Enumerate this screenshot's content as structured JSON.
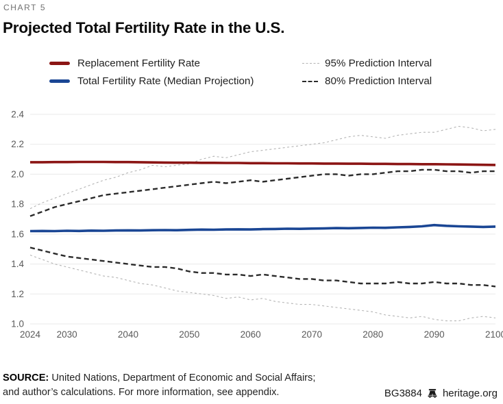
{
  "kicker": "CHART 5",
  "title": "Projected Total Fertility Rate in the U.S.",
  "legend": {
    "replacement": "Replacement Fertility Rate",
    "median": "Total Fertility Rate (Median Projection)",
    "p95": "95% Prediction Interval",
    "p80": "80% Prediction Interval"
  },
  "source": {
    "label": "SOURCE:",
    "line1": "United Nations, Department of Economic and Social Affairs;",
    "line2": "and author’s calculations. For more information, see appendix.",
    "report_id": "BG3884",
    "site": "heritage.org"
  },
  "colors": {
    "replacement": "#8b1514",
    "median": "#1a4694",
    "p95": "#b3b3b3",
    "p80": "#2a2a2a",
    "grid": "#e9e9e9",
    "axis_text": "#595959"
  },
  "chart_data": {
    "type": "line",
    "title": "Projected Total Fertility Rate in the U.S.",
    "xlabel": "",
    "ylabel": "",
    "xlim": [
      2024,
      2100
    ],
    "ylim": [
      1.0,
      2.4
    ],
    "x_ticks": [
      2024,
      2030,
      2040,
      2050,
      2060,
      2070,
      2080,
      2090,
      2100
    ],
    "y_ticks": [
      1.0,
      1.2,
      1.4,
      1.6,
      1.8,
      2.0,
      2.2,
      2.4
    ],
    "grid": "horizontal",
    "legend_position": "top",
    "x": [
      2024,
      2026,
      2028,
      2030,
      2032,
      2034,
      2036,
      2038,
      2040,
      2042,
      2044,
      2046,
      2048,
      2050,
      2052,
      2054,
      2056,
      2058,
      2060,
      2062,
      2064,
      2066,
      2068,
      2070,
      2072,
      2074,
      2076,
      2078,
      2080,
      2082,
      2084,
      2086,
      2088,
      2090,
      2092,
      2094,
      2096,
      2098,
      2100
    ],
    "series": [
      {
        "id": "p95-upper",
        "name": "95% Prediction Interval (upper)",
        "style": "dashed-light",
        "color_key": "p95",
        "width": 1.1,
        "values": [
          1.77,
          1.81,
          1.84,
          1.87,
          1.9,
          1.93,
          1.96,
          1.98,
          2.01,
          2.03,
          2.06,
          2.05,
          2.06,
          2.07,
          2.1,
          2.12,
          2.11,
          2.13,
          2.15,
          2.16,
          2.17,
          2.18,
          2.19,
          2.2,
          2.21,
          2.23,
          2.25,
          2.26,
          2.25,
          2.24,
          2.26,
          2.27,
          2.28,
          2.28,
          2.3,
          2.32,
          2.31,
          2.29,
          2.3
        ]
      },
      {
        "id": "p95-lower",
        "name": "95% Prediction Interval (lower)",
        "style": "dashed-light",
        "color_key": "p95",
        "width": 1.1,
        "values": [
          1.46,
          1.43,
          1.4,
          1.38,
          1.36,
          1.34,
          1.32,
          1.31,
          1.29,
          1.27,
          1.26,
          1.24,
          1.22,
          1.21,
          1.2,
          1.19,
          1.17,
          1.18,
          1.16,
          1.17,
          1.15,
          1.14,
          1.13,
          1.13,
          1.12,
          1.11,
          1.1,
          1.09,
          1.08,
          1.06,
          1.05,
          1.04,
          1.05,
          1.03,
          1.02,
          1.02,
          1.04,
          1.05,
          1.04
        ]
      },
      {
        "id": "p80-upper",
        "name": "80% Prediction Interval (upper)",
        "style": "dashed-dark",
        "color_key": "p80",
        "width": 2.4,
        "values": [
          1.72,
          1.75,
          1.78,
          1.8,
          1.82,
          1.84,
          1.86,
          1.87,
          1.88,
          1.89,
          1.9,
          1.91,
          1.92,
          1.93,
          1.94,
          1.95,
          1.94,
          1.95,
          1.96,
          1.95,
          1.96,
          1.97,
          1.98,
          1.99,
          2.0,
          2.0,
          1.99,
          2.0,
          2.0,
          2.01,
          2.02,
          2.02,
          2.03,
          2.03,
          2.02,
          2.02,
          2.01,
          2.02,
          2.02
        ]
      },
      {
        "id": "p80-lower",
        "name": "80% Prediction Interval (lower)",
        "style": "dashed-dark",
        "color_key": "p80",
        "width": 2.4,
        "values": [
          1.51,
          1.49,
          1.47,
          1.45,
          1.44,
          1.43,
          1.42,
          1.41,
          1.4,
          1.39,
          1.38,
          1.38,
          1.37,
          1.35,
          1.34,
          1.34,
          1.33,
          1.33,
          1.32,
          1.33,
          1.32,
          1.31,
          1.3,
          1.3,
          1.29,
          1.29,
          1.28,
          1.27,
          1.27,
          1.27,
          1.28,
          1.27,
          1.27,
          1.28,
          1.27,
          1.27,
          1.26,
          1.26,
          1.25
        ]
      },
      {
        "id": "replacement-line",
        "name": "Replacement Fertility Rate",
        "style": "solid",
        "color_key": "replacement",
        "width": 3.6,
        "values": [
          2.08,
          2.08,
          2.081,
          2.081,
          2.082,
          2.082,
          2.082,
          2.081,
          2.081,
          2.08,
          2.079,
          2.078,
          2.077,
          2.077,
          2.076,
          2.076,
          2.075,
          2.075,
          2.074,
          2.074,
          2.073,
          2.073,
          2.072,
          2.072,
          2.071,
          2.071,
          2.07,
          2.07,
          2.069,
          2.069,
          2.068,
          2.068,
          2.067,
          2.067,
          2.066,
          2.065,
          2.064,
          2.063,
          2.062
        ]
      },
      {
        "id": "median-line",
        "name": "Total Fertility Rate (Median Projection)",
        "style": "solid",
        "color_key": "median",
        "width": 3.6,
        "values": [
          1.62,
          1.621,
          1.62,
          1.622,
          1.621,
          1.623,
          1.622,
          1.624,
          1.625,
          1.624,
          1.626,
          1.627,
          1.626,
          1.628,
          1.63,
          1.629,
          1.631,
          1.632,
          1.631,
          1.633,
          1.634,
          1.636,
          1.635,
          1.637,
          1.638,
          1.64,
          1.639,
          1.641,
          1.643,
          1.642,
          1.645,
          1.648,
          1.652,
          1.66,
          1.655,
          1.652,
          1.65,
          1.648,
          1.65
        ]
      }
    ]
  }
}
